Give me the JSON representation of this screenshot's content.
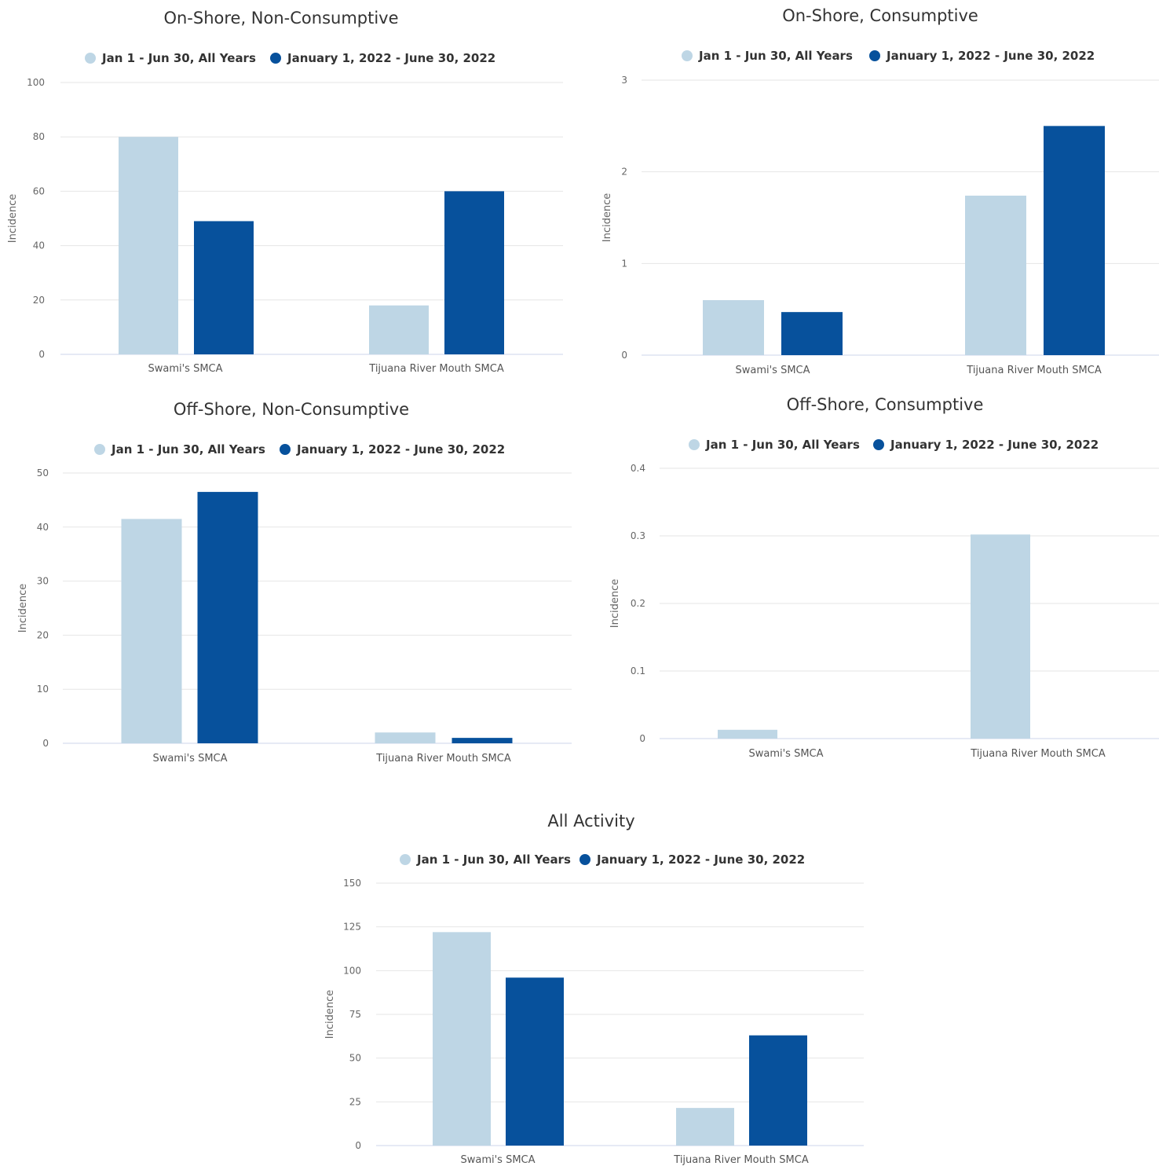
{
  "colors": {
    "series_all_years": "#bed6e5",
    "series_2022": "#07519c",
    "grid": "#e6e6e6",
    "axis": "#ccd6eb"
  },
  "chart_data": [
    {
      "type": "bar",
      "title": "On-Shore, Non-Consumptive",
      "ylabel": "Incidence",
      "categories": [
        "Swami's SMCA",
        "Tijuana River Mouth SMCA"
      ],
      "yticks": [
        "0",
        "20",
        "40",
        "60",
        "80",
        "100"
      ],
      "ylim": [
        0,
        100
      ],
      "series": [
        {
          "name": "Jan 1 - Jun 30, All Years",
          "values": [
            80,
            18
          ]
        },
        {
          "name": "January 1, 2022 - June 30, 2022",
          "values": [
            49,
            60
          ]
        }
      ]
    },
    {
      "type": "bar",
      "title": "On-Shore, Consumptive",
      "ylabel": "Incidence",
      "categories": [
        "Swami's SMCA",
        "Tijuana River Mouth SMCA"
      ],
      "yticks": [
        "0",
        "1",
        "2",
        "3"
      ],
      "ylim": [
        0,
        3
      ],
      "series": [
        {
          "name": "Jan 1 - Jun 30, All Years",
          "values": [
            0.6,
            1.74
          ]
        },
        {
          "name": "January 1, 2022 - June 30, 2022",
          "values": [
            0.47,
            2.5
          ]
        }
      ]
    },
    {
      "type": "bar",
      "title": "Off-Shore, Non-Consumptive",
      "ylabel": "Incidence",
      "categories": [
        "Swami's SMCA",
        "Tijuana River Mouth SMCA"
      ],
      "yticks": [
        "0",
        "10",
        "20",
        "30",
        "40",
        "50"
      ],
      "ylim": [
        0,
        50
      ],
      "series": [
        {
          "name": "Jan 1 - Jun 30, All Years",
          "values": [
            41.5,
            2
          ]
        },
        {
          "name": "January 1, 2022 - June 30, 2022",
          "values": [
            46.5,
            1
          ]
        }
      ]
    },
    {
      "type": "bar",
      "title": "Off-Shore, Consumptive",
      "ylabel": "Incidence",
      "categories": [
        "Swami's SMCA",
        "Tijuana River Mouth SMCA"
      ],
      "yticks": [
        "0",
        "0.1",
        "0.2",
        "0.3",
        "0.4"
      ],
      "ylim": [
        0,
        0.4
      ],
      "series": [
        {
          "name": "Jan 1 - Jun 30, All Years",
          "values": [
            0.013,
            0.302
          ]
        },
        {
          "name": "January 1, 2022 - June 30, 2022",
          "values": [
            0,
            0
          ]
        }
      ]
    },
    {
      "type": "bar",
      "title": "All Activity",
      "ylabel": "Incidence",
      "categories": [
        "Swami's SMCA",
        "Tijuana River Mouth SMCA"
      ],
      "yticks": [
        "0",
        "25",
        "50",
        "75",
        "100",
        "125",
        "150"
      ],
      "ylim": [
        0,
        150
      ],
      "series": [
        {
          "name": "Jan 1 - Jun 30, All Years",
          "values": [
            122,
            21.5
          ]
        },
        {
          "name": "January 1, 2022 - June 30, 2022",
          "values": [
            96,
            63
          ]
        }
      ]
    }
  ]
}
